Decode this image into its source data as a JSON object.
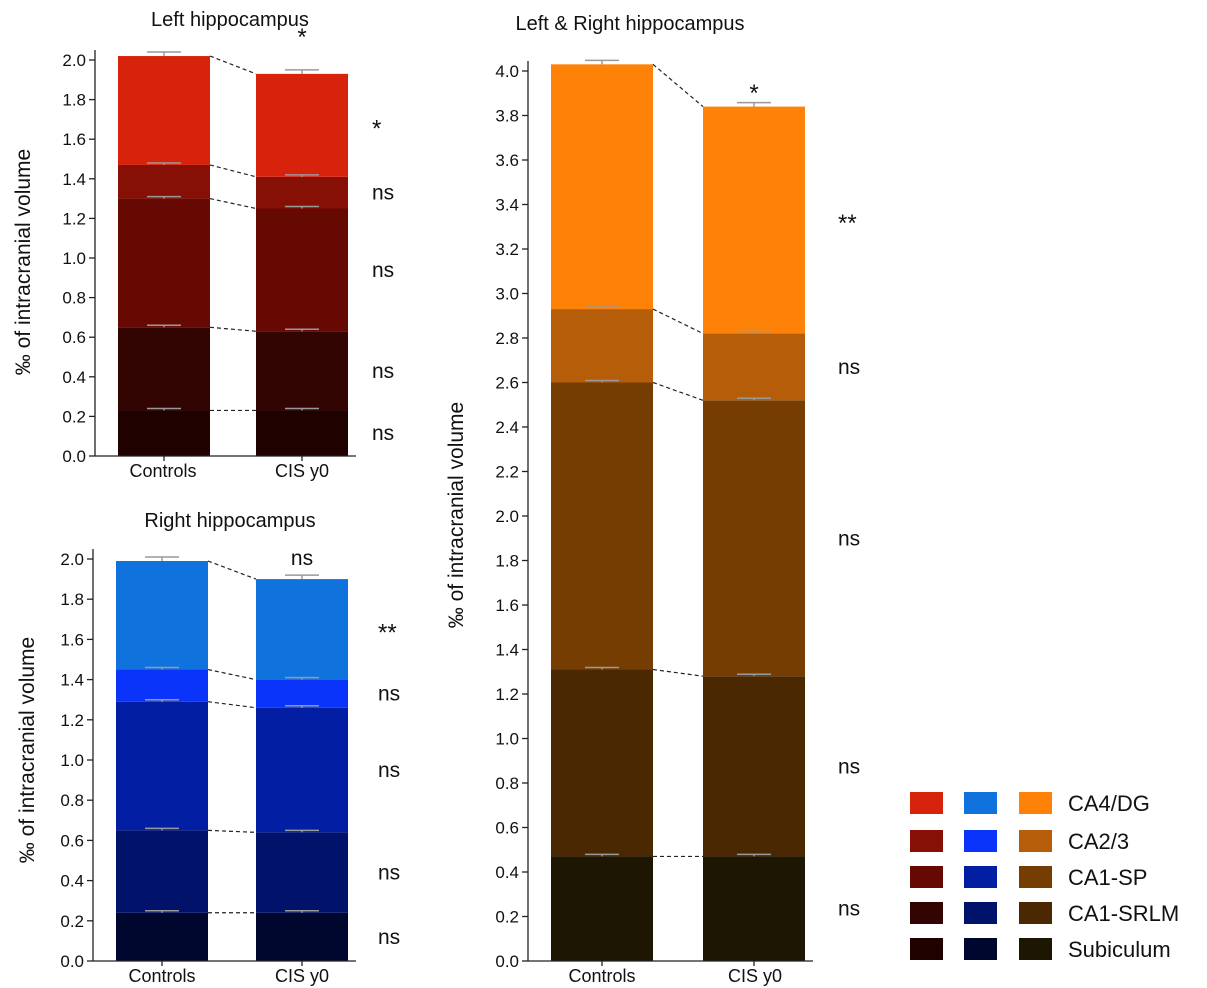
{
  "legend": {
    "labels": [
      "CA4/DG",
      "CA2/3",
      "CA1-SP",
      "CA1-SRLM",
      "Subiculum"
    ],
    "colors": {
      "left": [
        "#d7230b",
        "#860f06",
        "#650902",
        "#320402",
        "#1f0200"
      ],
      "right": [
        "#1072dc",
        "#0a34fa",
        "#021ea3",
        "#01126a",
        "#00072e"
      ],
      "both": [
        "#ff8208",
        "#b55d08",
        "#763d02",
        "#4a2802",
        "#1c1602"
      ]
    }
  },
  "chart_data": [
    {
      "type": "bar",
      "stacked": true,
      "title": "Left hippocampus",
      "ylabel": "‰ of intracranial volume",
      "xlabel": "",
      "categories": [
        "Controls",
        "CIS y0"
      ],
      "ylim": [
        0,
        2.0
      ],
      "yticks": [
        "0.0",
        "0.2",
        "0.4",
        "0.6",
        "0.8",
        "1.0",
        "1.2",
        "1.4",
        "1.6",
        "1.8",
        "2.0"
      ],
      "series": [
        {
          "name": "Subiculum",
          "values": [
            0.23,
            0.23
          ]
        },
        {
          "name": "CA1-SRLM",
          "values": [
            0.42,
            0.4
          ]
        },
        {
          "name": "CA1-SP",
          "values": [
            0.65,
            0.62
          ]
        },
        {
          "name": "CA2/3",
          "values": [
            0.17,
            0.16
          ]
        },
        {
          "name": "CA4/DG",
          "values": [
            0.55,
            0.52
          ]
        }
      ],
      "cumulative_top": [
        2.02,
        1.93
      ],
      "significance": [
        "ns",
        "ns",
        "ns",
        "ns",
        "*"
      ],
      "total_significance": "*"
    },
    {
      "type": "bar",
      "stacked": true,
      "title": "Right hippocampus",
      "ylabel": "‰ of intracranial volume",
      "xlabel": "",
      "categories": [
        "Controls",
        "CIS y0"
      ],
      "ylim": [
        0,
        2.0
      ],
      "yticks": [
        "0.0",
        "0.2",
        "0.4",
        "0.6",
        "0.8",
        "1.0",
        "1.2",
        "1.4",
        "1.6",
        "1.8",
        "2.0"
      ],
      "series": [
        {
          "name": "Subiculum",
          "values": [
            0.24,
            0.24
          ]
        },
        {
          "name": "CA1-SRLM",
          "values": [
            0.41,
            0.4
          ]
        },
        {
          "name": "CA1-SP",
          "values": [
            0.64,
            0.62
          ]
        },
        {
          "name": "CA2/3",
          "values": [
            0.16,
            0.14
          ]
        },
        {
          "name": "CA4/DG",
          "values": [
            0.54,
            0.5
          ]
        }
      ],
      "cumulative_top": [
        1.99,
        1.9
      ],
      "significance": [
        "ns",
        "ns",
        "ns",
        "ns",
        "**"
      ],
      "total_significance": "ns"
    },
    {
      "type": "bar",
      "stacked": true,
      "title": "Left & Right hippocampus",
      "ylabel": "‰ of intracranial volume",
      "xlabel": "",
      "categories": [
        "Controls",
        "CIS y0"
      ],
      "ylim": [
        0,
        4.0
      ],
      "yticks": [
        "0.0",
        "0.2",
        "0.4",
        "0.6",
        "0.8",
        "1.0",
        "1.2",
        "1.4",
        "1.6",
        "1.8",
        "2.0",
        "2.2",
        "2.4",
        "2.6",
        "2.8",
        "3.0",
        "3.2",
        "3.4",
        "3.6",
        "3.8",
        "4.0"
      ],
      "series": [
        {
          "name": "Subiculum",
          "values": [
            0.47,
            0.47
          ]
        },
        {
          "name": "CA1-SRLM",
          "values": [
            0.84,
            0.81
          ]
        },
        {
          "name": "CA1-SP",
          "values": [
            1.29,
            1.24
          ]
        },
        {
          "name": "CA2/3",
          "values": [
            0.33,
            0.3
          ]
        },
        {
          "name": "CA4/DG",
          "values": [
            1.1,
            1.02
          ]
        }
      ],
      "cumulative_top": [
        4.03,
        3.84
      ],
      "significance": [
        "ns",
        "ns",
        "ns",
        "ns",
        "**"
      ],
      "total_significance": "*"
    }
  ]
}
